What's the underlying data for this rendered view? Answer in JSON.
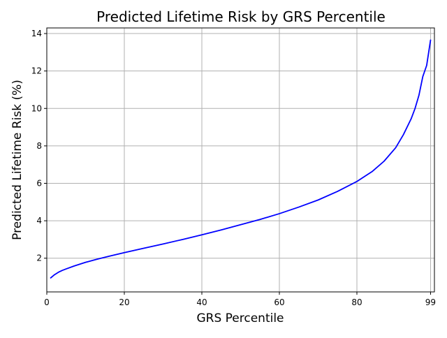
{
  "chart_data": {
    "type": "line",
    "title": "Predicted Lifetime Risk by GRS Percentile",
    "xlabel": "GRS Percentile",
    "ylabel": "Predicted Lifetime Risk (%)",
    "xlim": [
      0,
      100
    ],
    "ylim": [
      0.2,
      14.3
    ],
    "xticks": [
      0,
      20,
      40,
      60,
      80,
      99
    ],
    "yticks": [
      2,
      4,
      6,
      8,
      10,
      12,
      14
    ],
    "grid": true,
    "legend": "none",
    "series": [
      {
        "color": "#0000ff",
        "x": [
          1,
          2,
          3,
          4,
          5,
          7,
          10,
          13,
          16,
          20,
          25,
          30,
          35,
          40,
          45,
          50,
          55,
          60,
          65,
          70,
          75,
          80,
          84,
          87,
          90,
          92,
          94,
          95,
          96,
          97,
          98,
          99
        ],
        "y": [
          0.95,
          1.12,
          1.25,
          1.35,
          1.43,
          1.58,
          1.78,
          1.95,
          2.1,
          2.3,
          2.53,
          2.76,
          3.0,
          3.25,
          3.51,
          3.79,
          4.07,
          4.38,
          4.73,
          5.11,
          5.57,
          6.1,
          6.64,
          7.18,
          7.9,
          8.6,
          9.45,
          10.0,
          10.7,
          11.7,
          12.3,
          13.65
        ]
      }
    ]
  }
}
